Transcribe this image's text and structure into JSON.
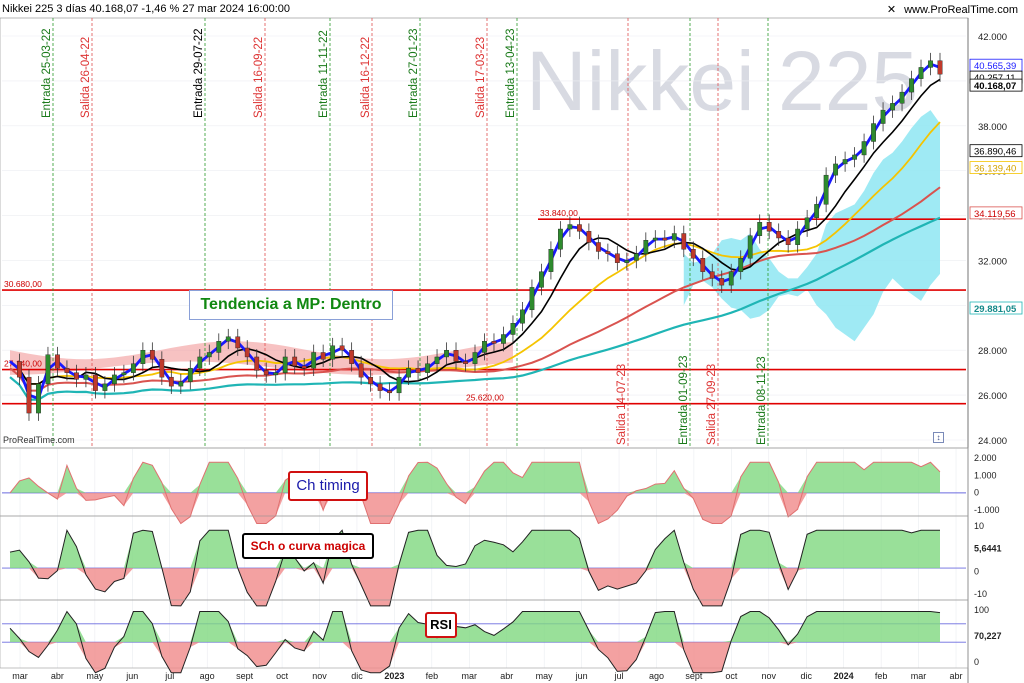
{
  "header": {
    "title": "Nikkei 225 3 días 40.168,07 -1,46 % 27 mar 2024 16:00:00",
    "source": "www.ProRealTime.com",
    "watermark": "Nikkei 225",
    "bottom_logo": "ProRealTime.com"
  },
  "colors": {
    "up_candle": "#2e8b2e",
    "down_candle": "#c0392b",
    "ma_fast": "#1a1aff",
    "ma_mid": "#000000",
    "ma_yellow": "#f5c400",
    "ma_red": "#d9534f",
    "ma_teal": "#1fb5b5",
    "cloud_bull": "#8ee6f2",
    "cloud_bear": "#f29a9a",
    "level_line": "#e00000",
    "entry_line": "#2a9a2a",
    "exit_line": "#e05050",
    "oscillator_ref": "#6a6adf"
  },
  "chart_data": {
    "type": "candlestick",
    "x_months": [
      "mar",
      "abr",
      "may",
      "jun",
      "jul",
      "ago",
      "sept",
      "oct",
      "nov",
      "dic",
      "2023",
      "feb",
      "mar",
      "abr",
      "may",
      "jun",
      "jul",
      "ago",
      "sept",
      "oct",
      "nov",
      "dic",
      "2024",
      "feb",
      "mar",
      "abr"
    ],
    "price_axis": {
      "ticks": [
        "42.000",
        "40.000",
        "38.000",
        "36.000",
        "34.000",
        "32.000",
        "30.000",
        "28.000",
        "26.000",
        "24.000"
      ],
      "ylim": [
        24000,
        42000
      ]
    },
    "price_labels": {
      "last_high": "40.565,39",
      "last_mid": "40.257,11",
      "last": "40.168,07",
      "ma_mid_value": "36.890,46",
      "ma_yellow_value": "36.139,40",
      "level_value": "34.119,56",
      "ma_teal_value": "29.881,05"
    },
    "levels": [
      {
        "label": "33.840,00",
        "value": 33840
      },
      {
        "label": "30.680,00",
        "value": 30680
      },
      {
        "label": "27.140,00",
        "value": 27140
      },
      {
        "label": "25.620,00",
        "value": 25620
      }
    ],
    "signals": [
      {
        "label": "Entrada 25-03-22",
        "kind": "entry"
      },
      {
        "label": "Salida 26-04-22",
        "kind": "exit"
      },
      {
        "label": "Entrada 29-07-22",
        "kind": "entry"
      },
      {
        "label": "Salida 16-09-22",
        "kind": "exit"
      },
      {
        "label": "Entrada 11-11-22",
        "kind": "entry"
      },
      {
        "label": "Salida 16-12-22",
        "kind": "exit"
      },
      {
        "label": "Entrada 27-01-23",
        "kind": "entry"
      },
      {
        "label": "Salida 17-03-23",
        "kind": "exit"
      },
      {
        "label": "Entrada 13-04-23",
        "kind": "entry"
      },
      {
        "label": "Salida 14-07-23",
        "kind": "exit"
      },
      {
        "label": "Entrada 01-09-23",
        "kind": "entry"
      },
      {
        "label": "Salida 27-09-23",
        "kind": "exit"
      },
      {
        "label": "Entrada 08-11-23",
        "kind": "entry"
      }
    ],
    "price_series": [
      27500,
      26800,
      25200,
      26500,
      27800,
      27200,
      27000,
      26700,
      26900,
      26200,
      26500,
      26900,
      27000,
      27400,
      28000,
      27600,
      26800,
      26400,
      26600,
      27200,
      27700,
      27900,
      28400,
      28600,
      28100,
      27700,
      27100,
      26900,
      27000,
      27700,
      27300,
      27200,
      27900,
      27600,
      28200,
      28000,
      27400,
      26800,
      26500,
      26200,
      26100,
      26800,
      27200,
      27000,
      27400,
      27700,
      28000,
      27500,
      27400,
      27900,
      28400,
      28300,
      28700,
      29200,
      29800,
      30800,
      31500,
      32500,
      33400,
      33600,
      33300,
      32800,
      32400,
      32300,
      31900,
      32000,
      32300,
      32900,
      33000,
      32900,
      33200,
      32500,
      32100,
      31500,
      31200,
      30900,
      31500,
      32100,
      33100,
      33700,
      33300,
      33000,
      32700,
      33400,
      33900,
      34500,
      35800,
      36300,
      36500,
      36700,
      37300,
      38100,
      38700,
      39000,
      39500,
      40100,
      40600,
      40900,
      40300
    ],
    "indicators": {
      "ch_timing": {
        "name": "Ch timing",
        "ticks": [
          "2.000",
          "1.000",
          "0",
          "-1.000"
        ]
      },
      "sch": {
        "name": "SCh o curva magica",
        "value": "5,6441",
        "ticks": [
          "10",
          "5,6441",
          "0",
          "-10"
        ]
      },
      "rsi": {
        "name": "RSI",
        "value": "70,227",
        "ticks": [
          "100",
          "70,227",
          "0"
        ]
      }
    },
    "annotation": "Tendencia a MP: Dentro"
  }
}
